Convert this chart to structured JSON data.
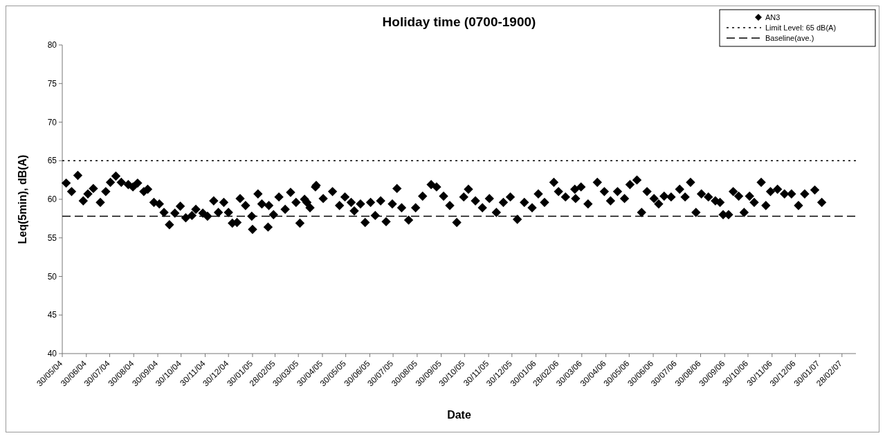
{
  "chart_data": {
    "type": "scatter",
    "title": "Holiday time (0700-1900)",
    "xlabel": "Date",
    "ylabel": "Leq(5min), dB(A)",
    "xlim": [
      "2004-05-30",
      "2007-03-18"
    ],
    "ylim": [
      40,
      80
    ],
    "yticks": [
      40,
      45,
      50,
      55,
      60,
      65,
      70,
      75,
      80
    ],
    "xticks": [
      {
        "value": "2004-05-30",
        "label": "30/05/04"
      },
      {
        "value": "2004-06-30",
        "label": "30/06/04"
      },
      {
        "value": "2004-07-30",
        "label": "30/07/04"
      },
      {
        "value": "2004-08-30",
        "label": "30/08/04"
      },
      {
        "value": "2004-09-30",
        "label": "30/09/04"
      },
      {
        "value": "2004-10-30",
        "label": "30/10/04"
      },
      {
        "value": "2004-11-30",
        "label": "30/11/04"
      },
      {
        "value": "2004-12-30",
        "label": "30/12/04"
      },
      {
        "value": "2005-01-30",
        "label": "30/01/05"
      },
      {
        "value": "2005-02-28",
        "label": "28/02/05"
      },
      {
        "value": "2005-03-30",
        "label": "30/03/05"
      },
      {
        "value": "2005-04-30",
        "label": "30/04/05"
      },
      {
        "value": "2005-05-30",
        "label": "30/05/05"
      },
      {
        "value": "2005-06-30",
        "label": "30/06/05"
      },
      {
        "value": "2005-07-30",
        "label": "30/07/05"
      },
      {
        "value": "2005-08-30",
        "label": "30/08/05"
      },
      {
        "value": "2005-09-30",
        "label": "30/09/05"
      },
      {
        "value": "2005-10-30",
        "label": "30/10/05"
      },
      {
        "value": "2005-11-30",
        "label": "30/11/05"
      },
      {
        "value": "2005-12-30",
        "label": "30/12/05"
      },
      {
        "value": "2006-01-30",
        "label": "30/01/06"
      },
      {
        "value": "2006-02-28",
        "label": "28/02/06"
      },
      {
        "value": "2006-03-30",
        "label": "30/03/06"
      },
      {
        "value": "2006-04-30",
        "label": "30/04/06"
      },
      {
        "value": "2006-05-30",
        "label": "30/05/06"
      },
      {
        "value": "2006-06-30",
        "label": "30/06/06"
      },
      {
        "value": "2006-07-30",
        "label": "30/07/06"
      },
      {
        "value": "2006-08-30",
        "label": "30/08/06"
      },
      {
        "value": "2006-09-30",
        "label": "30/09/06"
      },
      {
        "value": "2006-10-30",
        "label": "30/10/06"
      },
      {
        "value": "2006-11-30",
        "label": "30/11/06"
      },
      {
        "value": "2006-12-30",
        "label": "30/12/06"
      },
      {
        "value": "2007-01-30",
        "label": "30/01/07"
      },
      {
        "value": "2007-02-28",
        "label": "28/02/07"
      }
    ],
    "grid": false,
    "legend": "top right",
    "marker": "diamond",
    "ref_lines": [
      {
        "axis": "y",
        "value": 65,
        "label": "Limit Level: 65 dB(A)",
        "line_style": "dotted",
        "color": "#000000"
      },
      {
        "axis": "y",
        "value": 57.8,
        "label": "Baseline(ave.)",
        "line_style": "dashed",
        "color": "#000000"
      }
    ],
    "series": [
      {
        "name": "AN3",
        "color": "#000000",
        "x": [
          "2004-06-04",
          "2004-06-11",
          "2004-06-19",
          "2004-06-26",
          "2004-07-02",
          "2004-07-09",
          "2004-07-18",
          "2004-07-25",
          "2004-07-31",
          "2004-08-07",
          "2004-08-14",
          "2004-08-23",
          "2004-08-29",
          "2004-09-04",
          "2004-09-12",
          "2004-09-17",
          "2004-09-25",
          "2004-10-02",
          "2004-10-08",
          "2004-10-15",
          "2004-10-22",
          "2004-10-29",
          "2004-11-05",
          "2004-11-13",
          "2004-11-18",
          "2004-11-27",
          "2004-12-03",
          "2004-12-11",
          "2004-12-17",
          "2004-12-24",
          "2004-12-30",
          "2005-01-04",
          "2005-01-10",
          "2005-01-14",
          "2005-01-21",
          "2005-01-29",
          "2005-01-30",
          "2005-02-06",
          "2005-02-11",
          "2005-02-19",
          "2005-02-20",
          "2005-02-26",
          "2005-03-05",
          "2005-03-13",
          "2005-03-20",
          "2005-03-27",
          "2005-04-01",
          "2005-04-07",
          "2005-04-14",
          "2005-04-21",
          "2005-04-10",
          "2005-04-22",
          "2005-05-01",
          "2005-05-13",
          "2005-05-22",
          "2005-05-29",
          "2005-06-06",
          "2005-06-10",
          "2005-06-18",
          "2005-06-24",
          "2005-07-01",
          "2005-07-07",
          "2005-07-14",
          "2005-07-21",
          "2005-07-29",
          "2005-08-04",
          "2005-08-10",
          "2005-08-19",
          "2005-08-28",
          "2005-09-06",
          "2005-09-17",
          "2005-09-24",
          "2005-10-03",
          "2005-10-11",
          "2005-10-20",
          "2005-10-29",
          "2005-11-04",
          "2005-11-13",
          "2005-11-22",
          "2005-12-01",
          "2005-12-10",
          "2005-12-19",
          "2005-12-28",
          "2006-01-06",
          "2006-01-15",
          "2006-01-25",
          "2006-02-02",
          "2006-02-10",
          "2006-02-22",
          "2006-02-28",
          "2006-03-09",
          "2006-03-21",
          "2006-03-22",
          "2006-03-29",
          "2006-04-07",
          "2006-04-19",
          "2006-04-28",
          "2006-05-06",
          "2006-05-15",
          "2006-05-24",
          "2006-05-31",
          "2006-06-09",
          "2006-06-15",
          "2006-06-22",
          "2006-07-01",
          "2006-07-07",
          "2006-07-14",
          "2006-07-23",
          "2006-08-03",
          "2006-08-10",
          "2006-08-17",
          "2006-08-24",
          "2006-08-31",
          "2006-09-09",
          "2006-09-18",
          "2006-09-24",
          "2006-09-28",
          "2006-10-05",
          "2006-10-11",
          "2006-10-18",
          "2006-10-25",
          "2006-11-01",
          "2006-11-07",
          "2006-11-16",
          "2006-11-22",
          "2006-11-28",
          "2006-12-07",
          "2006-12-16",
          "2006-12-25",
          "2007-01-03",
          "2007-01-11",
          "2007-01-24",
          "2007-02-02"
        ],
        "values": [
          62.1,
          61.0,
          63.1,
          59.8,
          60.7,
          61.4,
          59.6,
          61.0,
          62.2,
          63.0,
          62.2,
          61.9,
          61.6,
          62.1,
          61.0,
          61.3,
          59.6,
          59.4,
          58.3,
          56.7,
          58.2,
          59.1,
          57.6,
          57.9,
          58.7,
          58.2,
          57.8,
          59.8,
          58.3,
          59.6,
          58.3,
          56.9,
          57.0,
          60.1,
          59.2,
          57.8,
          56.1,
          60.7,
          59.4,
          56.4,
          59.2,
          58.0,
          60.3,
          58.7,
          60.9,
          59.6,
          56.9,
          60.0,
          58.9,
          61.6,
          59.6,
          61.8,
          60.1,
          61.0,
          59.2,
          60.3,
          59.6,
          58.5,
          59.4,
          57.0,
          59.6,
          57.9,
          59.8,
          57.1,
          59.4,
          61.4,
          58.9,
          57.3,
          58.9,
          60.4,
          61.9,
          61.6,
          60.4,
          59.2,
          57.0,
          60.3,
          61.3,
          59.8,
          58.9,
          60.1,
          58.3,
          59.6,
          60.3,
          57.4,
          59.6,
          58.9,
          60.7,
          59.6,
          62.2,
          61.0,
          60.3,
          61.3,
          60.1,
          61.6,
          59.4,
          62.2,
          61.0,
          59.8,
          61.0,
          60.1,
          61.9,
          62.5,
          58.3,
          61.0,
          60.1,
          59.4,
          60.4,
          60.3,
          61.3,
          60.3,
          62.2,
          58.3,
          60.7,
          60.3,
          59.8,
          59.6,
          58.0,
          58.0,
          61.0,
          60.4,
          58.3,
          60.4,
          59.6,
          62.2,
          59.2,
          61.0,
          61.3,
          60.7,
          60.7,
          59.2,
          60.7,
          61.2,
          59.6
        ]
      }
    ]
  }
}
